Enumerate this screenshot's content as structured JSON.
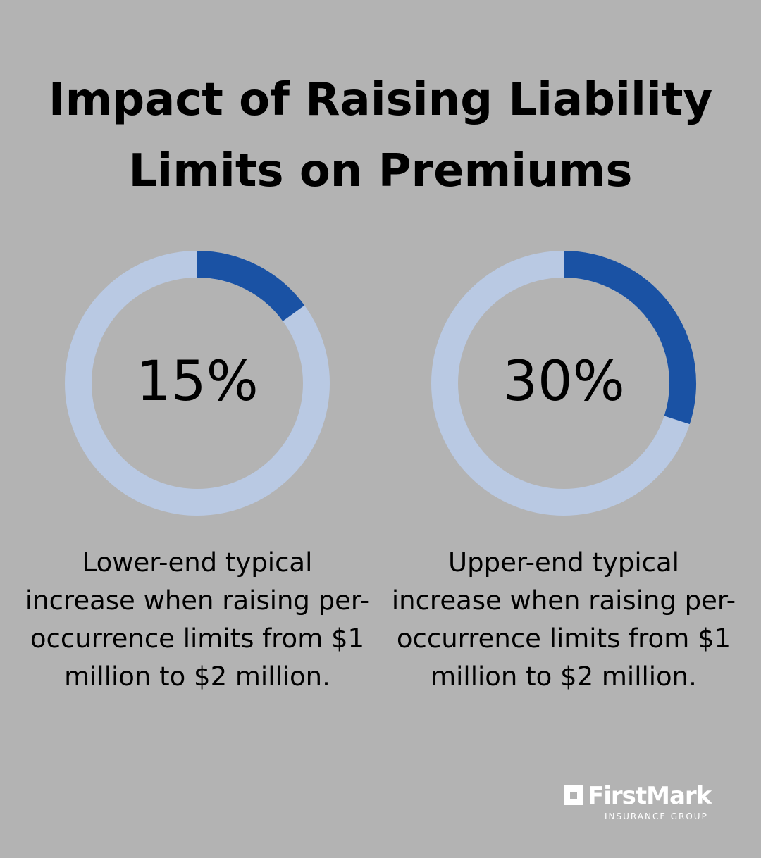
{
  "title": "Impact of Raising Liability Limits on Premiums",
  "colors": {
    "background": "#b3b3b3",
    "ring_track": "#b9c9e3",
    "ring_fill": "#1a52a4",
    "text": "#000000",
    "logo": "#ffffff"
  },
  "chart_data": [
    {
      "type": "pie",
      "value_percent": 15,
      "label": "15%",
      "description": "Lower-end typical increase when raising per-occurrence limits from $1 million to $2 million."
    },
    {
      "type": "pie",
      "value_percent": 30,
      "label": "30%",
      "description": "Upper-end typical increase when raising per-occurrence limits from $1 million to $2 million."
    }
  ],
  "logo": {
    "name": "FirstMark",
    "subtitle": "INSURANCE GROUP",
    "icon": "square-logo-icon"
  }
}
